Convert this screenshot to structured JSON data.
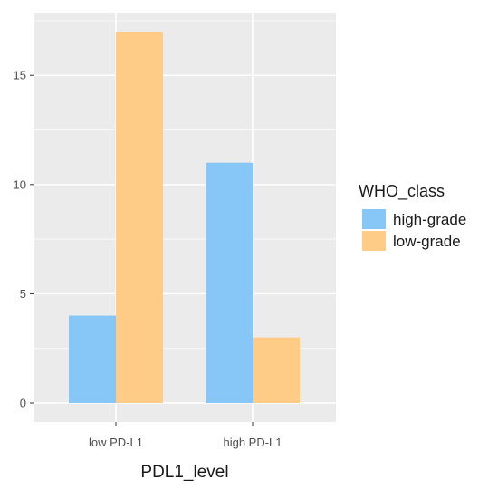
{
  "chart_data": {
    "type": "bar",
    "categories": [
      "low PD-L1",
      "high PD-L1"
    ],
    "series": [
      {
        "name": "high-grade",
        "values": [
          4,
          11
        ],
        "color": "#87C7F7"
      },
      {
        "name": "low-grade",
        "values": [
          17,
          3
        ],
        "color": "#FFCC88"
      }
    ],
    "xlabel": "PDL1_level",
    "ylabel": "",
    "ylim": [
      0,
      17.85
    ],
    "yticks": [
      0,
      5,
      10,
      15
    ],
    "grid": true,
    "legend": {
      "title": "WHO_class",
      "placement": "right"
    },
    "colors": {
      "panel_background": "#EBEBEB",
      "gridline": "#FFFFFF"
    }
  }
}
